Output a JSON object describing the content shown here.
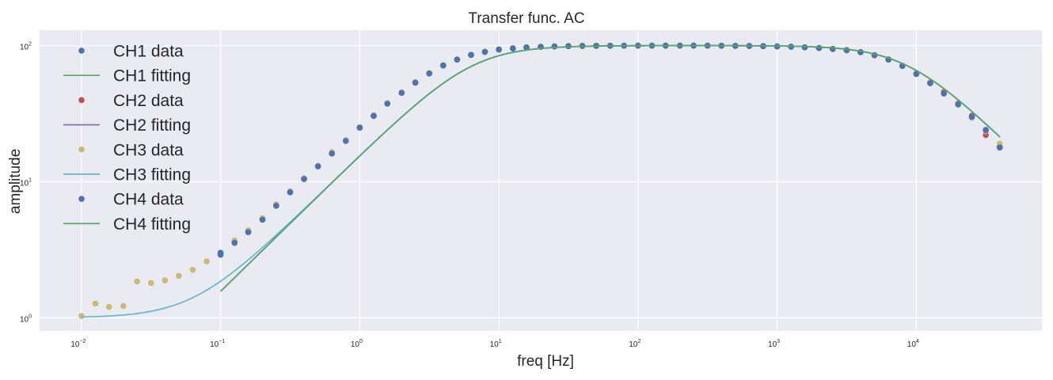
{
  "chart_data": {
    "type": "scatter",
    "title": "Transfer func. AC",
    "xlabel": "freq [Hz]",
    "ylabel": "amplitude",
    "xscale": "log",
    "yscale": "log",
    "xlim": [
      0.005,
      80000
    ],
    "ylim": [
      0.8,
      130
    ],
    "grid": true,
    "legend_location": "upper-left",
    "x_ticks": [
      {
        "base": "10",
        "exp": "−2",
        "value": 0.01
      },
      {
        "base": "10",
        "exp": "−1",
        "value": 0.1
      },
      {
        "base": "10",
        "exp": "0",
        "value": 1
      },
      {
        "base": "10",
        "exp": "1",
        "value": 10
      },
      {
        "base": "10",
        "exp": "2",
        "value": 100
      },
      {
        "base": "10",
        "exp": "3",
        "value": 1000
      },
      {
        "base": "10",
        "exp": "4",
        "value": 10000
      }
    ],
    "y_ticks": [
      {
        "base": "10",
        "exp": "0",
        "value": 1
      },
      {
        "base": "10",
        "exp": "1",
        "value": 10
      },
      {
        "base": "10",
        "exp": "2",
        "value": 100
      }
    ],
    "model": {
      "gain": 100,
      "low_cutoff_hz": 6.4,
      "high_cutoff_hz": 8700,
      "floor": 1.0
    },
    "series": [
      {
        "name": "CH1 data",
        "kind": "points",
        "color": "#4c72b0",
        "x": [
          0.1,
          0.126,
          0.158,
          0.2,
          0.251,
          0.316,
          0.398,
          0.501,
          0.631,
          0.794,
          1.0,
          1.26,
          1.58,
          2.0,
          2.51,
          3.16,
          3.98,
          5.01,
          6.31,
          7.94,
          10,
          12.6,
          15.8,
          20,
          25.1,
          31.6,
          39.8,
          50.1,
          63.1,
          79.4,
          100,
          126,
          158,
          200,
          251,
          316,
          398,
          501,
          631,
          794,
          1000,
          1260,
          1580,
          2000,
          2510,
          3160,
          3980,
          5010,
          6310,
          7940,
          10000,
          12600,
          15800,
          20000,
          25100,
          31600,
          39800
        ],
        "y": [
          3.0,
          3.6,
          4.3,
          5.3,
          6.7,
          8.4,
          10.5,
          13,
          16.2,
          20,
          25,
          30.5,
          37.5,
          45,
          53.5,
          62.5,
          71.5,
          79,
          85.5,
          90,
          93.5,
          95.5,
          97,
          98,
          98.7,
          99.2,
          99.5,
          99.7,
          99.8,
          99.9,
          100,
          100,
          100,
          100,
          100,
          99.9,
          99.8,
          99.6,
          99.4,
          99.1,
          98.7,
          98.2,
          97.2,
          96,
          94.5,
          92.5,
          89.5,
          85,
          79,
          71,
          62,
          53,
          44.5,
          37,
          30,
          24,
          18
        ]
      },
      {
        "name": "CH1 fitting",
        "kind": "line",
        "color": "#55a868"
      },
      {
        "name": "CH2 data",
        "kind": "points",
        "color": "#c44e52",
        "x": [
          0.126,
          0.158,
          0.2,
          0.251,
          0.316,
          0.398,
          0.501,
          0.631,
          0.794,
          1.0,
          1.26,
          1.58,
          2.0,
          2.51,
          3.16,
          3.98,
          5.01,
          6.31,
          7.94,
          10,
          12.6,
          15.8,
          20,
          25.1,
          31.6,
          39.8,
          50.1,
          63.1,
          79.4,
          100,
          126,
          158,
          200,
          251,
          316,
          398,
          501,
          631,
          794,
          1000,
          1260,
          1580,
          2000,
          2510,
          3160,
          3980,
          5010,
          6310,
          7940,
          10000,
          12600,
          15800,
          20000,
          25100,
          31600
        ],
        "y": [
          3.6,
          4.3,
          5.3,
          6.7,
          8.4,
          10.5,
          13,
          16.2,
          20,
          25,
          30.5,
          37.5,
          45,
          53.5,
          62.5,
          71.5,
          79,
          85.5,
          90,
          93.5,
          95.5,
          97,
          98,
          98.7,
          99.2,
          99.5,
          99.7,
          99.8,
          99.9,
          100,
          100,
          100,
          100,
          100,
          99.9,
          99.8,
          99.6,
          99.4,
          99.1,
          98.7,
          98.2,
          97.2,
          96,
          94.5,
          92.5,
          89.5,
          85,
          79,
          71,
          62,
          53.5,
          45.5,
          37.5,
          30.5,
          22
        ]
      },
      {
        "name": "CH2 fitting",
        "kind": "line",
        "color": "#8172b2"
      },
      {
        "name": "CH3 data",
        "kind": "points",
        "color": "#ccb974",
        "x": [
          0.01,
          0.0126,
          0.0158,
          0.02,
          0.0251,
          0.0316,
          0.0398,
          0.0501,
          0.0631,
          0.0794,
          0.126,
          0.158,
          0.2,
          0.251,
          0.316,
          0.398,
          0.501,
          0.631,
          0.794,
          1.0,
          1.26,
          1.58,
          2.0,
          2.51,
          3.16,
          3.98,
          5.01,
          6.31,
          7.94,
          10,
          12.6,
          15.8,
          20,
          25.1,
          31.6,
          39.8,
          50.1,
          63.1,
          79.4,
          100,
          126,
          158,
          200,
          251,
          316,
          398,
          501,
          631,
          794,
          1000,
          1260,
          1580,
          2000,
          2510,
          3160,
          3980,
          5010,
          6310,
          7940,
          10000,
          12600,
          15800,
          20000,
          25100,
          31600,
          39800
        ],
        "y": [
          1.03,
          1.27,
          1.2,
          1.22,
          1.85,
          1.8,
          1.88,
          2.03,
          2.25,
          2.6,
          3.7,
          4.4,
          5.4,
          6.8,
          8.5,
          10.6,
          13.1,
          16.5,
          20.2,
          25.2,
          30.8,
          37.8,
          45.3,
          53.8,
          62.8,
          71.8,
          79.2,
          85.7,
          90.2,
          93.7,
          95.7,
          97.2,
          98.2,
          98.9,
          99.4,
          99.7,
          99.9,
          100,
          100,
          100,
          100,
          100,
          100,
          100,
          100,
          100,
          99.8,
          99.6,
          99.3,
          98.9,
          98.4,
          97.4,
          96.3,
          95,
          93,
          90,
          85.5,
          79.5,
          71.5,
          62.5,
          53,
          44.5,
          37,
          29.5,
          23.5,
          19
        ]
      },
      {
        "name": "CH3 fitting",
        "kind": "line",
        "color": "#64b5cd"
      },
      {
        "name": "CH4 data",
        "kind": "points",
        "color": "#4c72b0",
        "x": [
          0.1,
          0.126,
          0.158,
          0.2,
          0.251,
          0.316,
          0.398,
          0.501,
          0.631,
          0.794,
          1.0,
          1.26,
          1.58,
          2.0,
          2.51,
          3.16,
          3.98,
          5.01,
          6.31,
          7.94,
          10,
          12.6,
          15.8,
          20,
          25.1,
          31.6,
          39.8,
          50.1,
          63.1,
          79.4,
          100,
          126,
          158,
          200,
          251,
          316,
          398,
          501,
          631,
          794,
          1000,
          1260,
          1580,
          2000,
          2510,
          3160,
          3980,
          5010,
          6310,
          7940,
          10000,
          12600,
          15800,
          20000,
          25100,
          31600,
          39800
        ],
        "y": [
          2.9,
          3.55,
          4.25,
          5.25,
          6.65,
          8.35,
          10.45,
          12.95,
          16.1,
          19.9,
          24.9,
          30.4,
          37.4,
          44.9,
          53.4,
          62.4,
          71.4,
          78.9,
          85.4,
          89.9,
          93.4,
          95.4,
          96.9,
          97.9,
          98.6,
          99.1,
          99.4,
          99.6,
          99.7,
          99.8,
          99.9,
          99.9,
          99.9,
          99.9,
          99.9,
          99.8,
          99.7,
          99.5,
          99.3,
          99,
          98.6,
          98.1,
          97.1,
          95.9,
          94.4,
          92.4,
          89.4,
          84.9,
          78.9,
          70.9,
          61.9,
          52.9,
          44.4,
          36.9,
          29.9,
          23.9,
          17.8
        ]
      },
      {
        "name": "CH4 fitting",
        "kind": "line",
        "color": "#55a868"
      }
    ]
  }
}
